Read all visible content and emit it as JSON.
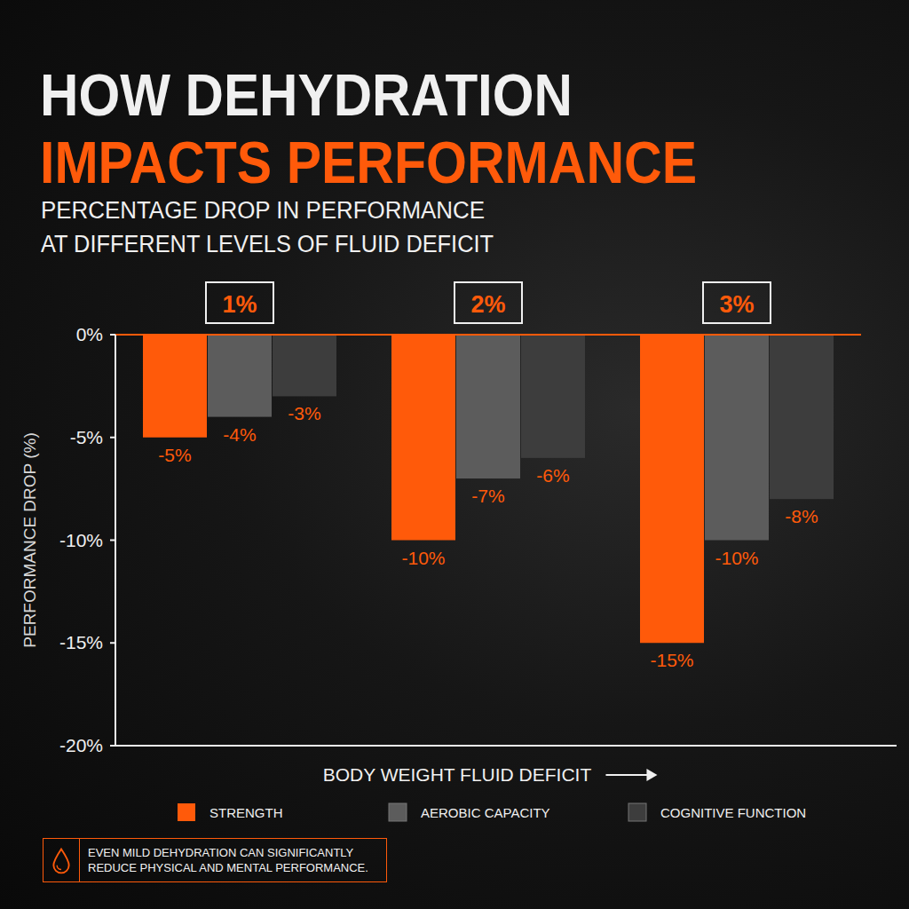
{
  "chart_data": {
    "type": "bar",
    "title": [
      "HOW DEHYDRATION",
      "IMPACTS PERFORMANCE"
    ],
    "subtitle": [
      "PERCENTAGE DROP IN PERFORMANCE",
      "AT DIFFERENT LEVELS OF FLUID DEFICIT"
    ],
    "categories": [
      "1%",
      "2%",
      "3%"
    ],
    "series": [
      {
        "name": "STRENGTH",
        "color": "#ff5a0a",
        "values": [
          -5,
          -10,
          -15
        ],
        "value_labels": [
          "-5%",
          "-10%",
          "-15%"
        ]
      },
      {
        "name": "AEROBIC CAPACITY",
        "color": "#5c5c5c",
        "values": [
          -4,
          -7,
          -10
        ],
        "value_labels": [
          "-4%",
          "-7%",
          "-10%"
        ]
      },
      {
        "name": "COGNITIVE FUNCTION",
        "color": "#3d3d3d",
        "values": [
          -3,
          -6,
          -8
        ],
        "value_labels": [
          "-3%",
          "-6%",
          "-8%"
        ]
      }
    ],
    "ylim": [
      -20,
      0
    ],
    "yticks": [
      {
        "value": -20,
        "label": "-20%"
      },
      {
        "value": -15,
        "label": "-15%"
      },
      {
        "value": -10,
        "label": "-10%"
      },
      {
        "value": -5,
        "label": "-5%"
      },
      {
        "value": 0,
        "label": "0%"
      }
    ],
    "ylabel": "PERFORMANCE DROP (%)",
    "xlabel": "BODY WEIGHT FLUID DEFICIT",
    "annotation": "EVEN MILD DEHYDRATION CAN SIGNIFICANTLY REDUCE PHYSICAL AND MENTAL PERFORMANCE.",
    "grid": false,
    "legend": "bottom",
    "data_labels": true
  }
}
